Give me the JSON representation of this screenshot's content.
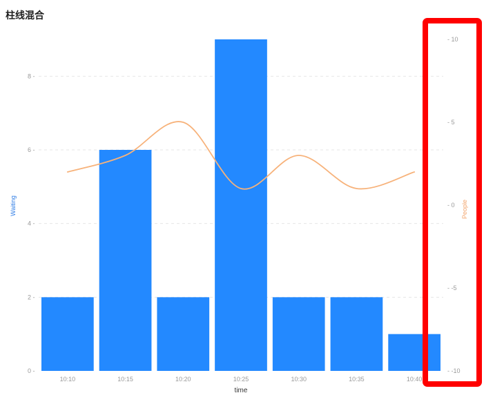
{
  "chart_data": {
    "type": "bar",
    "title": "柱线混合",
    "xlabel": "time",
    "categories": [
      "10:10",
      "10:15",
      "10:20",
      "10:25",
      "10:30",
      "10:35",
      "10:40"
    ],
    "series": [
      {
        "name": "Waiting",
        "type": "bar",
        "axis": "left",
        "color": "#2389ff",
        "values": [
          2,
          6,
          2,
          9,
          2,
          2,
          1
        ]
      },
      {
        "name": "People",
        "type": "line",
        "axis": "right",
        "color": "#f7b27a",
        "values": [
          2,
          3,
          5,
          1,
          3,
          1,
          2
        ]
      }
    ],
    "y_left": {
      "label": "Waiting",
      "ylim": [
        0,
        9
      ],
      "ticks": [
        "0",
        "2",
        "4",
        "6",
        "8"
      ]
    },
    "y_right": {
      "label": "People",
      "ylim": [
        -10,
        10
      ],
      "ticks": [
        "-10",
        "-5",
        "0",
        "5",
        "10"
      ]
    },
    "grid": true,
    "highlight_color": "#ff0000"
  }
}
